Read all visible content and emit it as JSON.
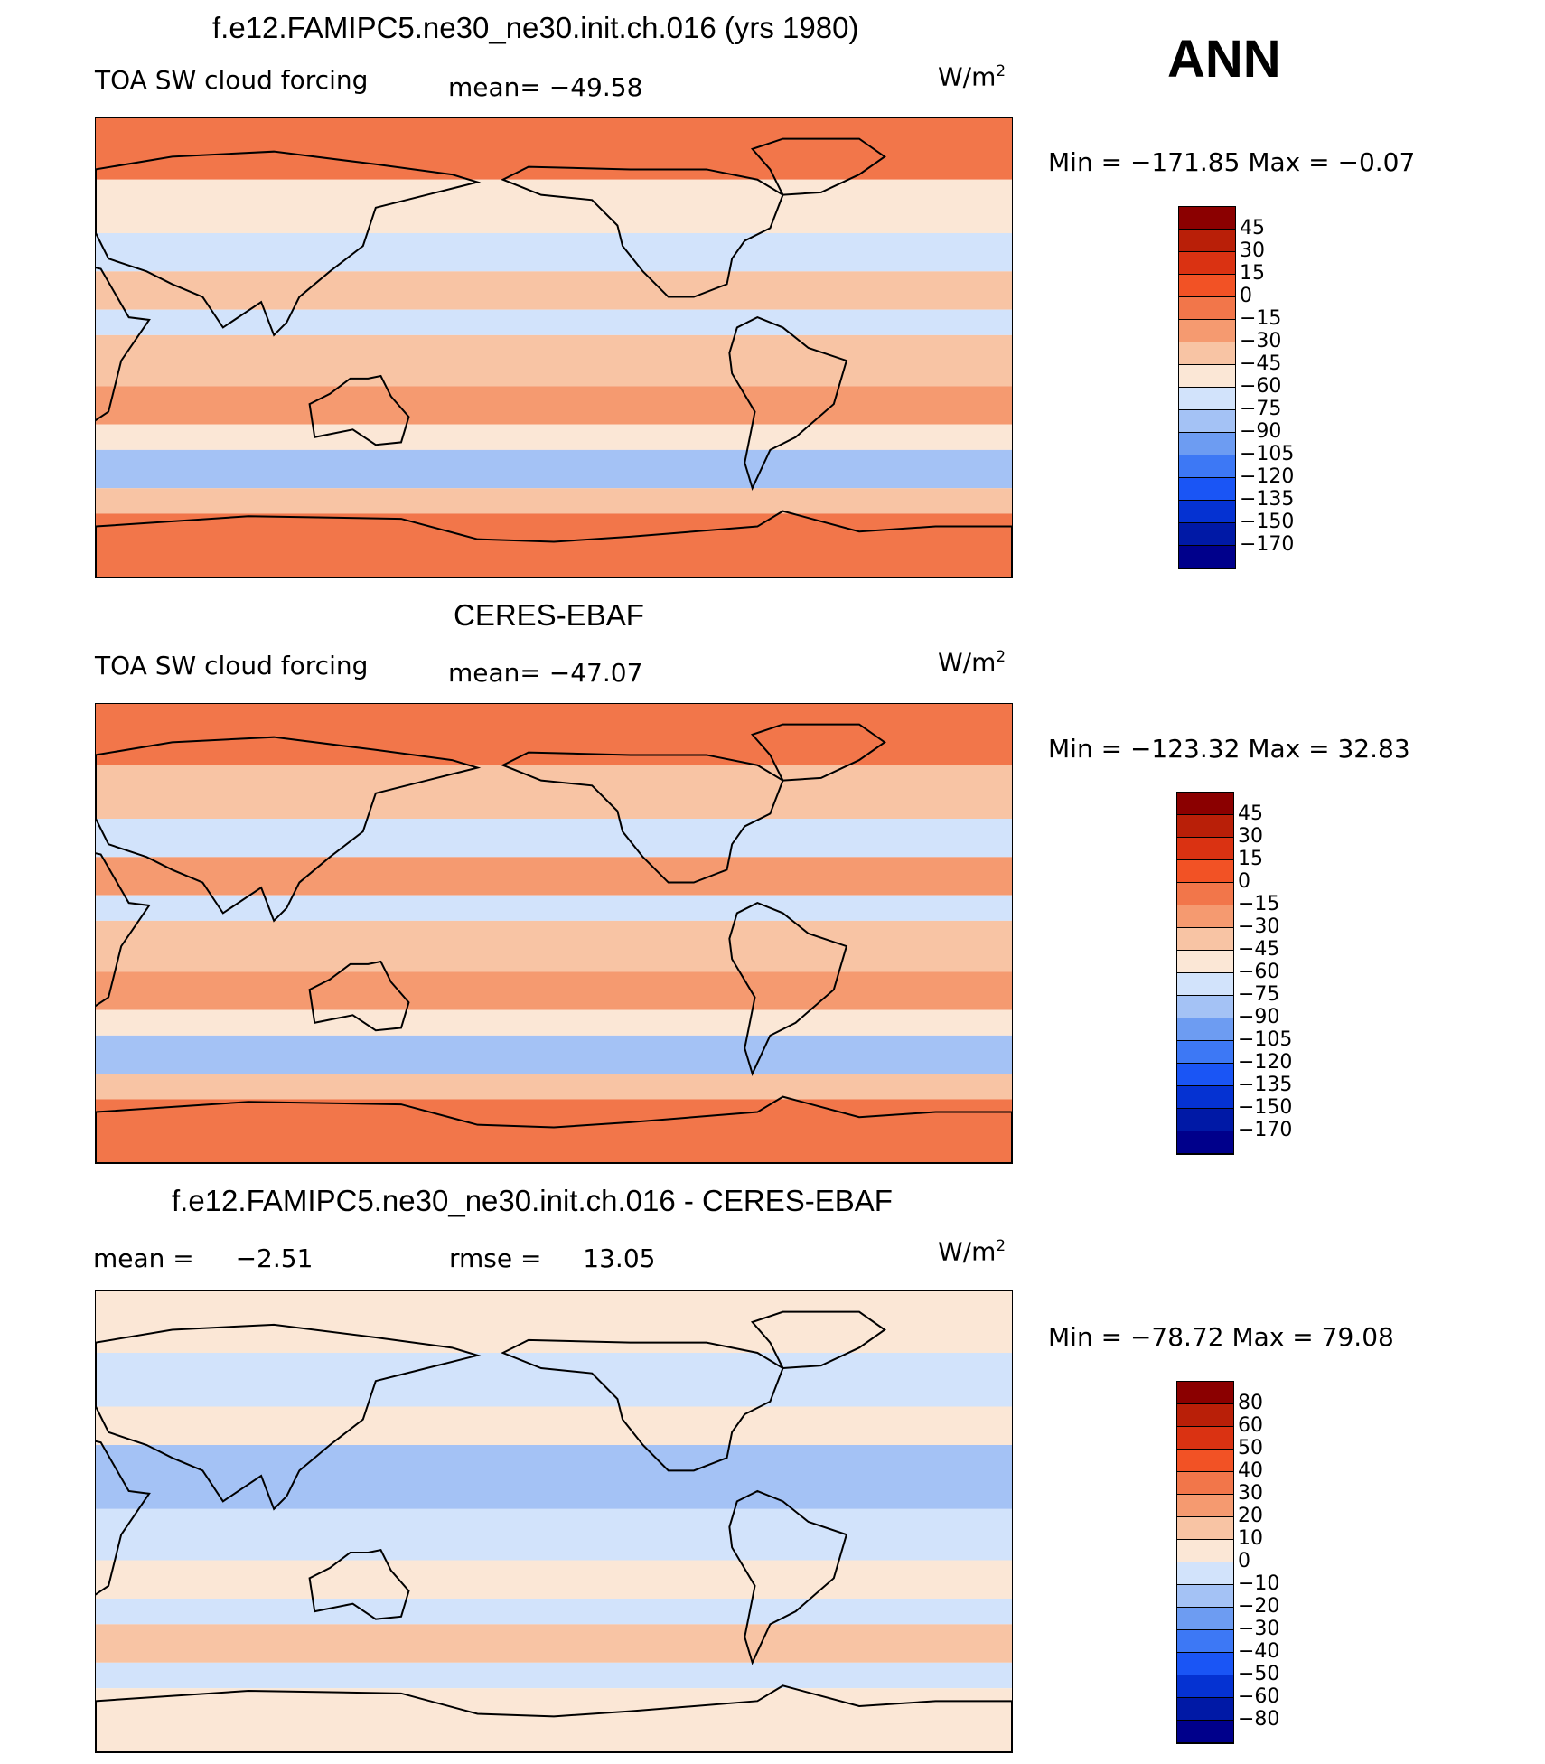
{
  "panel_label": "ANN",
  "units": "W/m",
  "units_sup": "2",
  "colors": {
    "main_scale": [
      "#00008b",
      "#0019a6",
      "#0532d2",
      "#1a55f5",
      "#3d78f5",
      "#6d9cf2",
      "#a4c2f5",
      "#d2e3fb",
      "#fbe7d6",
      "#f8c4a4",
      "#f59a70",
      "#f2764a",
      "#f25225",
      "#da3212",
      "#b91f08",
      "#8b0000"
    ],
    "diff_scale": [
      "#00008b",
      "#0019a6",
      "#0532d2",
      "#1a55f5",
      "#3d78f5",
      "#6d9cf2",
      "#a4c2f5",
      "#d2e3fb",
      "#fbe7d6",
      "#f8c4a4",
      "#f59a70",
      "#f2764a",
      "#f25225",
      "#da3212",
      "#b91f08",
      "#8b0000"
    ],
    "coast": "#000000"
  },
  "chart_data": [
    {
      "type": "heatmap",
      "id": "model",
      "title": "f.e12.FAMIPC5.ne30_ne30.init.ch.016 (yrs 1980)",
      "left_label": "TOA SW cloud forcing",
      "mean_label": "mean=",
      "mean_value": "−49.58",
      "min_label": "Min",
      "min_value": "−171.85",
      "max_label": "Max",
      "max_value": "−0.07",
      "colorbar_levels": [
        "45",
        "30",
        "15",
        "0",
        "−15",
        "−30",
        "−45",
        "−60",
        "−75",
        "−90",
        "−105",
        "−120",
        "−135",
        "−150",
        "−170"
      ],
      "bands": [
        {
          "lat_from": 90,
          "lat_to": 66,
          "value": -10
        },
        {
          "lat_from": 66,
          "lat_to": 45,
          "value": -50
        },
        {
          "lat_from": 45,
          "lat_to": 30,
          "value": -70
        },
        {
          "lat_from": 30,
          "lat_to": 15,
          "value": -40
        },
        {
          "lat_from": 15,
          "lat_to": 5,
          "value": -75
        },
        {
          "lat_from": 5,
          "lat_to": -15,
          "value": -45
        },
        {
          "lat_from": -15,
          "lat_to": -30,
          "value": -25
        },
        {
          "lat_from": -30,
          "lat_to": -40,
          "value": -60
        },
        {
          "lat_from": -40,
          "lat_to": -55,
          "value": -90
        },
        {
          "lat_from": -55,
          "lat_to": -65,
          "value": -40
        },
        {
          "lat_from": -65,
          "lat_to": -90,
          "value": -10
        }
      ]
    },
    {
      "type": "heatmap",
      "id": "obs",
      "title": "CERES-EBAF",
      "left_label": "TOA SW cloud forcing",
      "mean_label": "mean=",
      "mean_value": "−47.07",
      "min_label": "Min",
      "min_value": "−123.32",
      "max_label": "Max",
      "max_value": "32.83",
      "colorbar_levels": [
        "45",
        "30",
        "15",
        "0",
        "−15",
        "−30",
        "−45",
        "−60",
        "−75",
        "−90",
        "−105",
        "−120",
        "−135",
        "−150",
        "−170"
      ],
      "bands": [
        {
          "lat_from": 90,
          "lat_to": 66,
          "value": -10
        },
        {
          "lat_from": 66,
          "lat_to": 45,
          "value": -45
        },
        {
          "lat_from": 45,
          "lat_to": 30,
          "value": -70
        },
        {
          "lat_from": 30,
          "lat_to": 15,
          "value": -30
        },
        {
          "lat_from": 15,
          "lat_to": 5,
          "value": -65
        },
        {
          "lat_from": 5,
          "lat_to": -15,
          "value": -40
        },
        {
          "lat_from": -15,
          "lat_to": -30,
          "value": -30
        },
        {
          "lat_from": -30,
          "lat_to": -40,
          "value": -55
        },
        {
          "lat_from": -40,
          "lat_to": -55,
          "value": -80
        },
        {
          "lat_from": -55,
          "lat_to": -65,
          "value": -35
        },
        {
          "lat_from": -65,
          "lat_to": -90,
          "value": -10
        }
      ]
    },
    {
      "type": "heatmap",
      "id": "diff",
      "title": "f.e12.FAMIPC5.ne30_ne30.init.ch.016 - CERES-EBAF",
      "mean_label": "mean =",
      "mean_value": "−2.51",
      "rmse_label": "rmse =",
      "rmse_value": "13.05",
      "min_label": "Min",
      "min_value": "−78.72",
      "max_label": "Max",
      "max_value": "79.08",
      "colorbar_levels": [
        "80",
        "60",
        "50",
        "40",
        "30",
        "20",
        "10",
        "0",
        "−10",
        "−20",
        "−30",
        "−40",
        "−50",
        "−60",
        "−80"
      ],
      "bands": [
        {
          "lat_from": 90,
          "lat_to": 66,
          "value": 2
        },
        {
          "lat_from": 66,
          "lat_to": 45,
          "value": -8
        },
        {
          "lat_from": 45,
          "lat_to": 30,
          "value": 5
        },
        {
          "lat_from": 30,
          "lat_to": 15,
          "value": -12
        },
        {
          "lat_from": 15,
          "lat_to": 5,
          "value": -18
        },
        {
          "lat_from": 5,
          "lat_to": -15,
          "value": -6
        },
        {
          "lat_from": -15,
          "lat_to": -30,
          "value": 8
        },
        {
          "lat_from": -30,
          "lat_to": -40,
          "value": -5
        },
        {
          "lat_from": -40,
          "lat_to": -55,
          "value": 12
        },
        {
          "lat_from": -55,
          "lat_to": -65,
          "value": -5
        },
        {
          "lat_from": -65,
          "lat_to": -90,
          "value": 2
        }
      ]
    }
  ]
}
